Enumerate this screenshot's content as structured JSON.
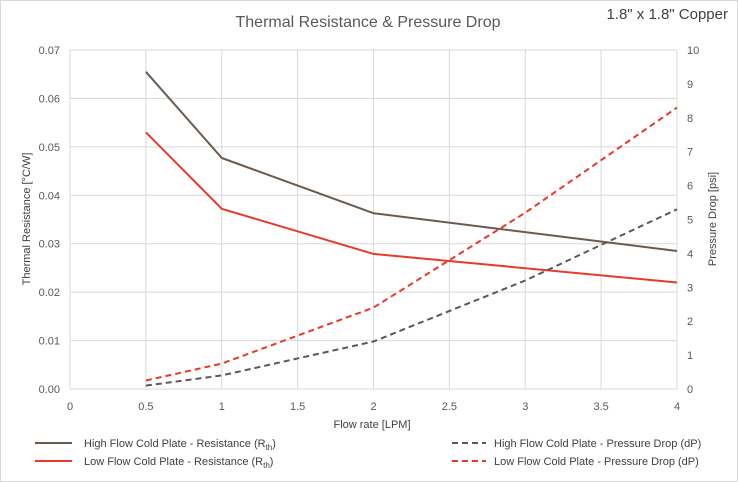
{
  "chart_data": {
    "type": "line",
    "title": "Thermal Resistance & Pressure Drop",
    "corner_label": "1.8\" x 1.8\" Copper",
    "xlabel": "Flow rate [LPM]",
    "ylabel_left": "Thermal Resistance [°C/W]",
    "ylabel_right": "Pressure Drop [psi]",
    "xlim": [
      0,
      4
    ],
    "ylim_left": [
      0,
      0.07
    ],
    "ylim_right": [
      0,
      10
    ],
    "x_ticks": [
      "0",
      "0.5",
      "1",
      "1.5",
      "2",
      "2.5",
      "3",
      "3.5",
      "4"
    ],
    "y_left_ticks": [
      "0.00",
      "0.01",
      "0.02",
      "0.03",
      "0.04",
      "0.05",
      "0.06",
      "0.07"
    ],
    "y_right_ticks": [
      "0",
      "1",
      "2",
      "3",
      "4",
      "5",
      "6",
      "7",
      "8",
      "9",
      "10"
    ],
    "grid": true,
    "legend_position": "bottom",
    "series": [
      {
        "name": "High Flow Cold Plate - Resistance (Rth)",
        "legend_main": "High Flow Cold Plate - Resistance  (R",
        "legend_sub": "th",
        "legend_close": ")",
        "axis": "left",
        "color": "#6b5a4e",
        "dash": "solid",
        "x": [
          0.5,
          1,
          2,
          4
        ],
        "values": [
          0.0655,
          0.0477,
          0.0363,
          0.0285
        ]
      },
      {
        "name": "Low Flow Cold Plate - Resistance (Rth)",
        "legend_main": "Low Flow Cold Plate - Resistance  (R",
        "legend_sub": "th",
        "legend_close": ")",
        "axis": "left",
        "color": "#e8392b",
        "dash": "solid",
        "x": [
          0.5,
          1,
          2,
          4
        ],
        "values": [
          0.053,
          0.0372,
          0.0279,
          0.022
        ]
      },
      {
        "name": "High Flow Cold Plate - Pressure Drop (dP)",
        "legend_main": "High Flow Cold Plate - Pressure Drop (dP)",
        "axis": "right",
        "color": "#595959",
        "dash": "dashed",
        "x": [
          0.5,
          1,
          2,
          3,
          4
        ],
        "values": [
          0.1,
          0.4,
          1.4,
          3.2,
          5.3
        ]
      },
      {
        "name": "Low Flow Cold Plate - Pressure Drop (dP)",
        "legend_main": "Low Flow Cold Plate - Pressure Drop (dP)",
        "axis": "right",
        "color": "#e8392b",
        "dash": "dashed",
        "x": [
          0.5,
          1,
          2,
          3,
          4
        ],
        "values": [
          0.25,
          0.75,
          2.4,
          5.2,
          8.3
        ]
      }
    ]
  }
}
